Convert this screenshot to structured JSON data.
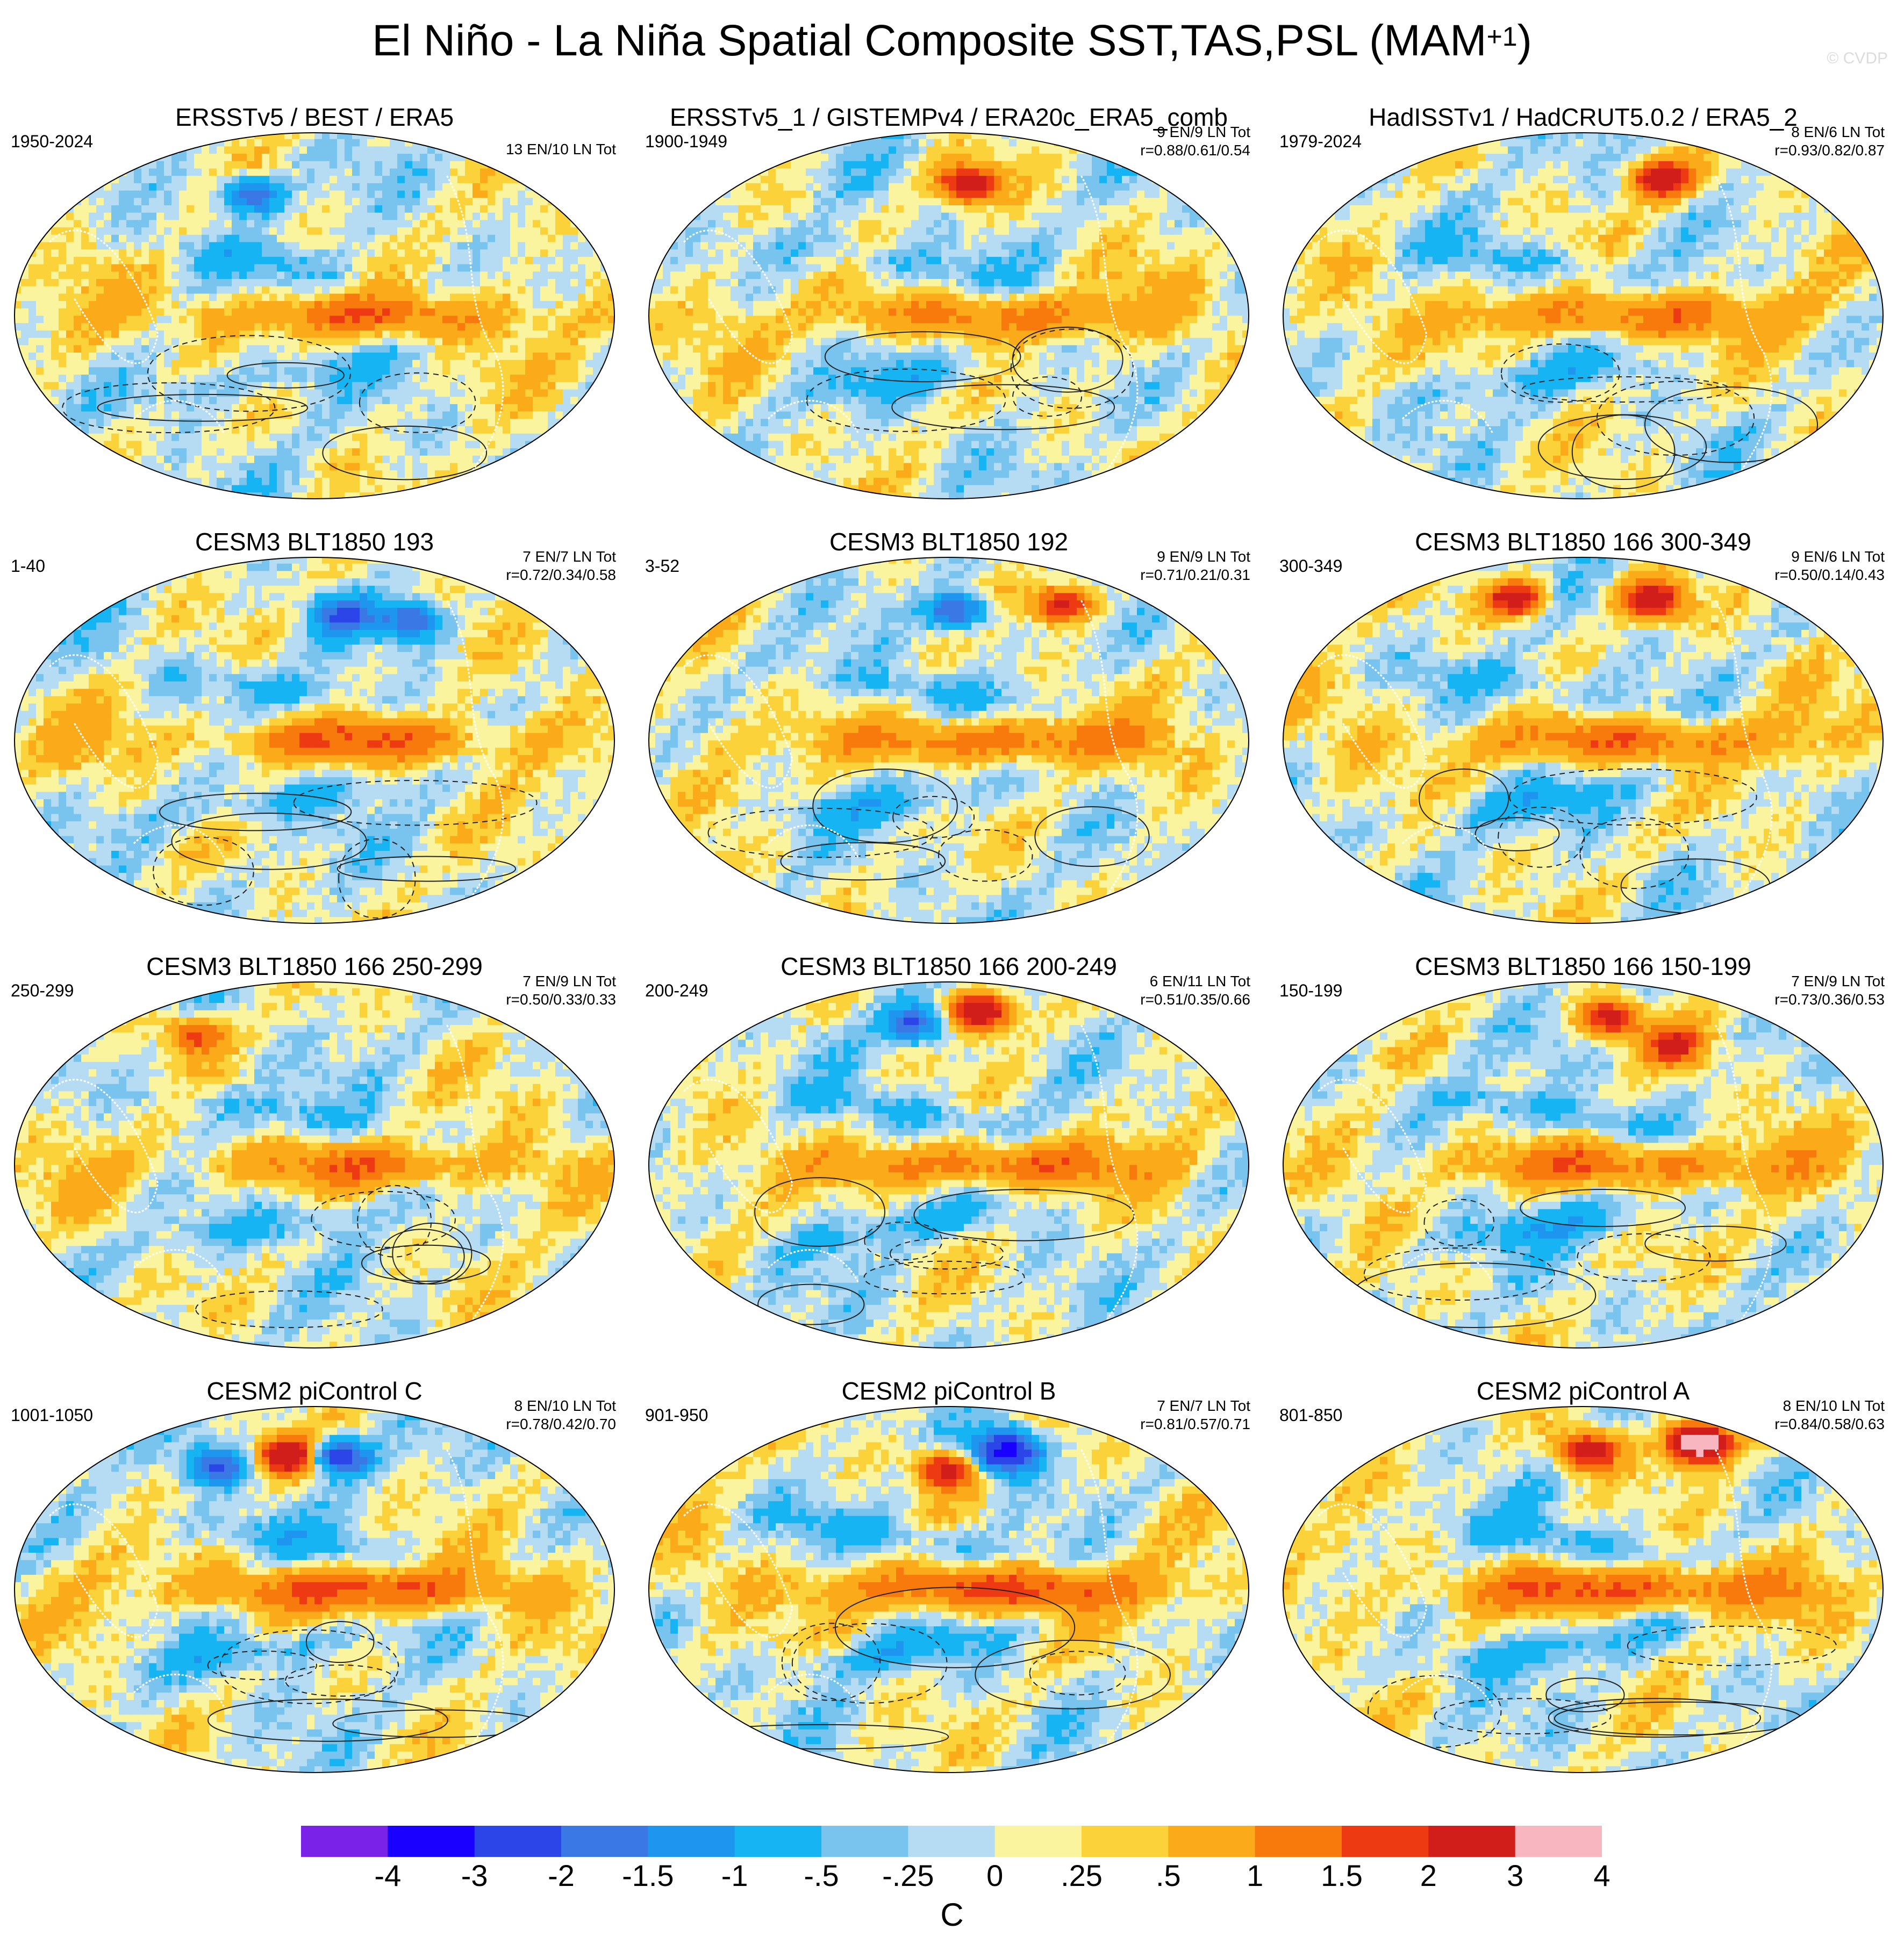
{
  "figure": {
    "title_main": "El Niño - La Niña Spatial Composite SST,TAS,PSL (MAM",
    "title_sup": "+1",
    "title_end": ")",
    "credit": "© CVDP"
  },
  "chart_data": {
    "type": "heatmap",
    "description_type": "map composite panels",
    "units": "C",
    "colorbar": {
      "labels": [
        "-4",
        "-3",
        "-2",
        "-1.5",
        "-1",
        "-.5",
        "-.25",
        "0",
        ".25",
        ".5",
        "1",
        "1.5",
        "2",
        "3",
        "4"
      ],
      "colors": [
        "#7b22e8",
        "#1a00ff",
        "#2b45e8",
        "#3a78e6",
        "#1e96f0",
        "#16b4f2",
        "#78c4ef",
        "#b6dcf4",
        "#fbf49e",
        "#fbd23a",
        "#fbaa1a",
        "#f97a0c",
        "#ee3a12",
        "#d21e1a",
        "#f7b6c0"
      ]
    },
    "panels": [
      {
        "title": "ERSSTv5 / BEST / ERA5",
        "years": "1950-2024",
        "count": "13 EN/10 LN Tot",
        "corr": "",
        "warm": 0.8,
        "cold": 0.55,
        "hotspots": 1,
        "seed": 11
      },
      {
        "title": "ERSSTv5_1 / GISTEMPv4 / ERA20c_ERA5_comb",
        "years": "1900-1949",
        "count": "9 EN/9 LN Tot",
        "corr": "r=0.88/0.61/0.54",
        "warm": 0.75,
        "cold": 0.55,
        "hotspots": 1,
        "seed": 23
      },
      {
        "title": "HadISSTv1 / HadCRUT5.0.2 / ERA5_2",
        "years": "1979-2024",
        "count": "8 EN/6 LN Tot",
        "corr": "r=0.93/0.82/0.87",
        "warm": 0.8,
        "cold": 0.55,
        "hotspots": 1,
        "seed": 37
      },
      {
        "title": "CESM3 BLT1850 193",
        "years": "1-40",
        "count": "7 EN/7 LN Tot",
        "corr": "r=0.72/0.34/0.58",
        "warm": 0.85,
        "cold": 0.6,
        "hotspots": 2,
        "seed": 41
      },
      {
        "title": "CESM3 BLT1850 192",
        "years": "3-52",
        "count": "9 EN/9 LN Tot",
        "corr": "r=0.71/0.21/0.31",
        "warm": 0.85,
        "cold": 0.6,
        "hotspots": 2,
        "seed": 53
      },
      {
        "title": "CESM3 BLT1850 166 300-349",
        "years": "300-349",
        "count": "9 EN/6 LN Tot",
        "corr": "r=0.50/0.14/0.43",
        "warm": 0.85,
        "cold": 0.65,
        "hotspots": 2,
        "seed": 67
      },
      {
        "title": "CESM3 BLT1850 166 250-299",
        "years": "250-299",
        "count": "7 EN/9 LN Tot",
        "corr": "r=0.50/0.33/0.33",
        "warm": 0.75,
        "cold": 0.6,
        "hotspots": 1,
        "seed": 71
      },
      {
        "title": "CESM3 BLT1850 166 200-249",
        "years": "200-249",
        "count": "6 EN/11 LN Tot",
        "corr": "r=0.51/0.35/0.66",
        "warm": 0.9,
        "cold": 0.6,
        "hotspots": 2,
        "seed": 83
      },
      {
        "title": "CESM3 BLT1850 166 150-199",
        "years": "150-199",
        "count": "7 EN/9 LN Tot",
        "corr": "r=0.73/0.36/0.53",
        "warm": 0.85,
        "cold": 0.75,
        "hotspots": 2,
        "seed": 97
      },
      {
        "title": "CESM2 piControl C",
        "years": "1001-1050",
        "count": "8 EN/10 LN Tot",
        "corr": "r=0.78/0.42/0.70",
        "warm": 1.05,
        "cold": 0.65,
        "hotspots": 3,
        "seed": 101
      },
      {
        "title": "CESM2 piControl B",
        "years": "901-950",
        "count": "7 EN/7 LN Tot",
        "corr": "r=0.81/0.57/0.71",
        "warm": 1.1,
        "cold": 0.7,
        "hotspots": 3,
        "seed": 113
      },
      {
        "title": "CESM2 piControl A",
        "years": "801-850",
        "count": "8 EN/10 LN Tot",
        "corr": "r=0.84/0.58/0.63",
        "warm": 1.05,
        "cold": 0.7,
        "hotspots": 3,
        "seed": 127
      }
    ]
  }
}
